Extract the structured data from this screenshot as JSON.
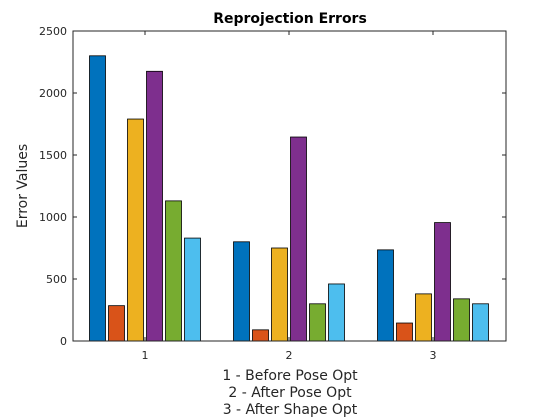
{
  "chart_data": {
    "type": "bar",
    "title": "Reprojection Errors",
    "ylabel": "Error Values",
    "xlabel_lines": [
      "1 - Before Pose Opt",
      "2 - After Pose Opt",
      "3 - After Shape Opt"
    ],
    "categories": [
      "1",
      "2",
      "3"
    ],
    "ylim": [
      0,
      2500
    ],
    "yticks": [
      0,
      500,
      1000,
      1500,
      2000,
      2500
    ],
    "grid": false,
    "series": [
      {
        "color": "#0072BD",
        "values": [
          2300,
          800,
          735
        ]
      },
      {
        "color": "#D95319",
        "values": [
          285,
          90,
          145
        ]
      },
      {
        "color": "#EDB120",
        "values": [
          1790,
          750,
          380
        ]
      },
      {
        "color": "#7E2F8E",
        "values": [
          2175,
          1645,
          955
        ]
      },
      {
        "color": "#77AC30",
        "values": [
          1130,
          300,
          340
        ]
      },
      {
        "color": "#4DBEEE",
        "values": [
          830,
          460,
          300
        ]
      }
    ]
  }
}
